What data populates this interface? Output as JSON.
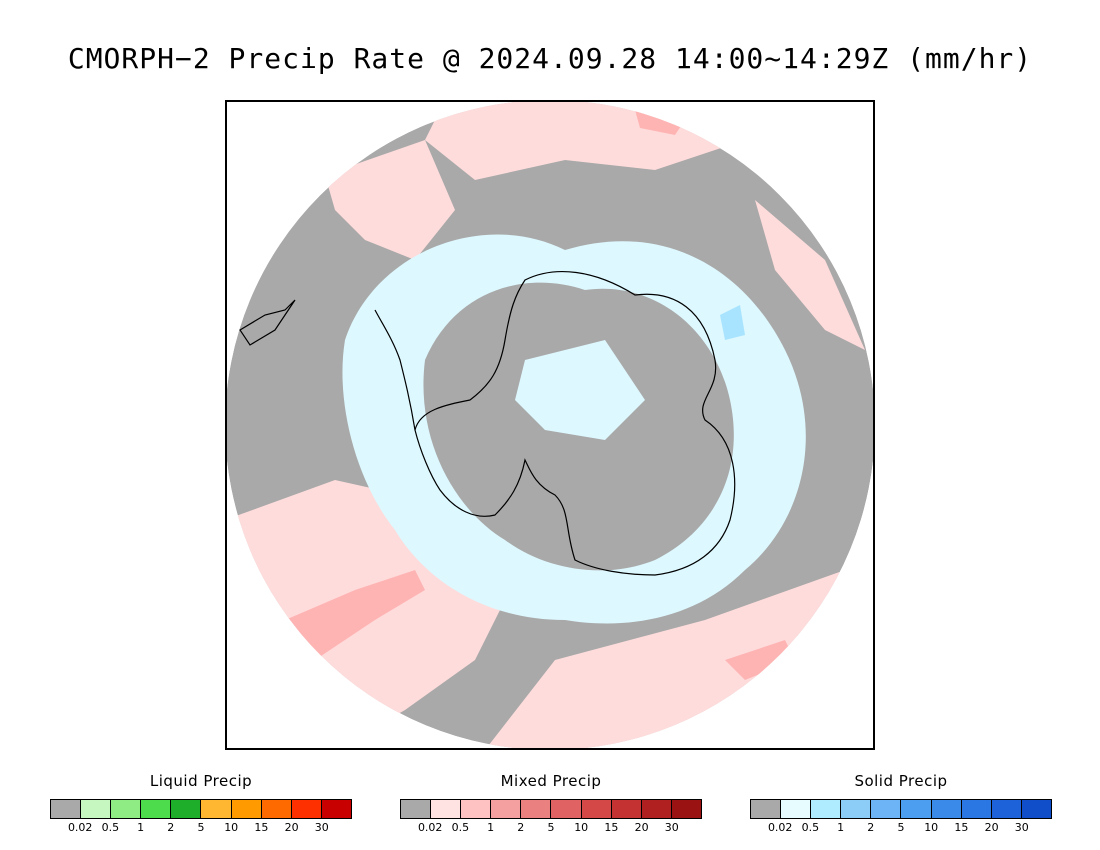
{
  "title": "CMORPH−2 Precip Rate @ 2024.09.28 14:00~14:29Z (mm/hr)",
  "map": {
    "ocean_color": "#a9a9a9",
    "mixed_light": "#ffdcdc",
    "mixed_medium": "#ffb4b4",
    "solid_light": "#ddf8ff",
    "solid_medium": "#a8e4ff",
    "coastline_color": "#000000"
  },
  "legends": [
    {
      "title": "Liquid Precip",
      "colors": [
        "#a9a9a9",
        "#c7f7c0",
        "#8fec84",
        "#4ddc4b",
        "#1fae2a",
        "#ffb732",
        "#ff9a00",
        "#ff6a00",
        "#ff3000",
        "#c80000"
      ],
      "ticks": [
        "0.02",
        "0.5",
        "1",
        "2",
        "5",
        "10",
        "15",
        "20",
        "30"
      ]
    },
    {
      "title": "Mixed Precip",
      "colors": [
        "#a9a9a9",
        "#ffe2e2",
        "#ffc2c2",
        "#f5a0a0",
        "#ea8080",
        "#e06262",
        "#d44848",
        "#c43232",
        "#b02020",
        "#9a1212"
      ],
      "ticks": [
        "0.02",
        "0.5",
        "1",
        "2",
        "5",
        "10",
        "15",
        "20",
        "30"
      ]
    },
    {
      "title": "Solid Precip",
      "colors": [
        "#a9a9a9",
        "#e6fcff",
        "#b0ecff",
        "#8ccdf8",
        "#6cb4f5",
        "#4c9ef0",
        "#3a8aea",
        "#2a76e2",
        "#1d62d8",
        "#0f4ec8"
      ],
      "ticks": [
        "0.02",
        "0.5",
        "1",
        "2",
        "5",
        "10",
        "15",
        "20",
        "30"
      ]
    }
  ]
}
